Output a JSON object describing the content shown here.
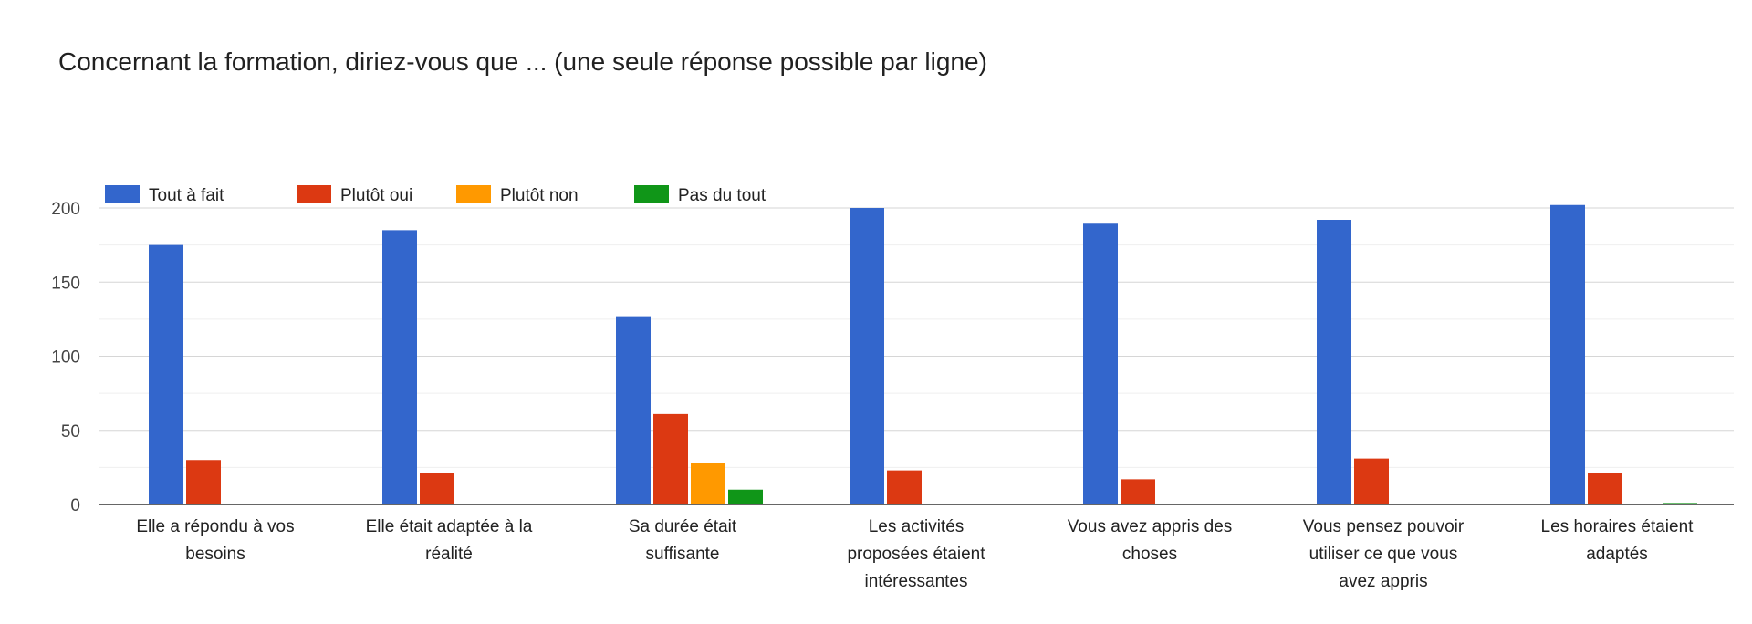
{
  "chart_data": {
    "type": "bar",
    "title": "Concernant la formation, diriez-vous que ... (une seule réponse possible par ligne)",
    "categories": [
      [
        "Elle a répondu à vos",
        "besoins"
      ],
      [
        "Elle était adaptée à la",
        "réalité"
      ],
      [
        "Sa durée était",
        "suffisante"
      ],
      [
        "Les activités",
        "proposées étaient",
        "intéressantes"
      ],
      [
        "Vous avez appris des",
        "choses"
      ],
      [
        "Vous pensez pouvoir",
        "utiliser ce que vous",
        "avez appris"
      ],
      [
        "Les horaires étaient",
        "adaptés"
      ]
    ],
    "series": [
      {
        "name": "Tout à fait",
        "color": "#3366cc",
        "values": [
          175,
          185,
          127,
          200,
          190,
          192,
          202
        ]
      },
      {
        "name": "Plutôt oui",
        "color": "#dc3912",
        "values": [
          30,
          21,
          61,
          23,
          17,
          31,
          21
        ]
      },
      {
        "name": "Plutôt non",
        "color": "#ff9900",
        "values": [
          0,
          0,
          28,
          0,
          0,
          0,
          0
        ]
      },
      {
        "name": "Pas du tout",
        "color": "#109618",
        "values": [
          0,
          0,
          10,
          0,
          0,
          0,
          1
        ]
      }
    ],
    "ylim": [
      0,
      200
    ],
    "yticks": [
      0,
      50,
      100,
      150,
      200
    ],
    "grid": true,
    "legend_position": "top-left"
  }
}
